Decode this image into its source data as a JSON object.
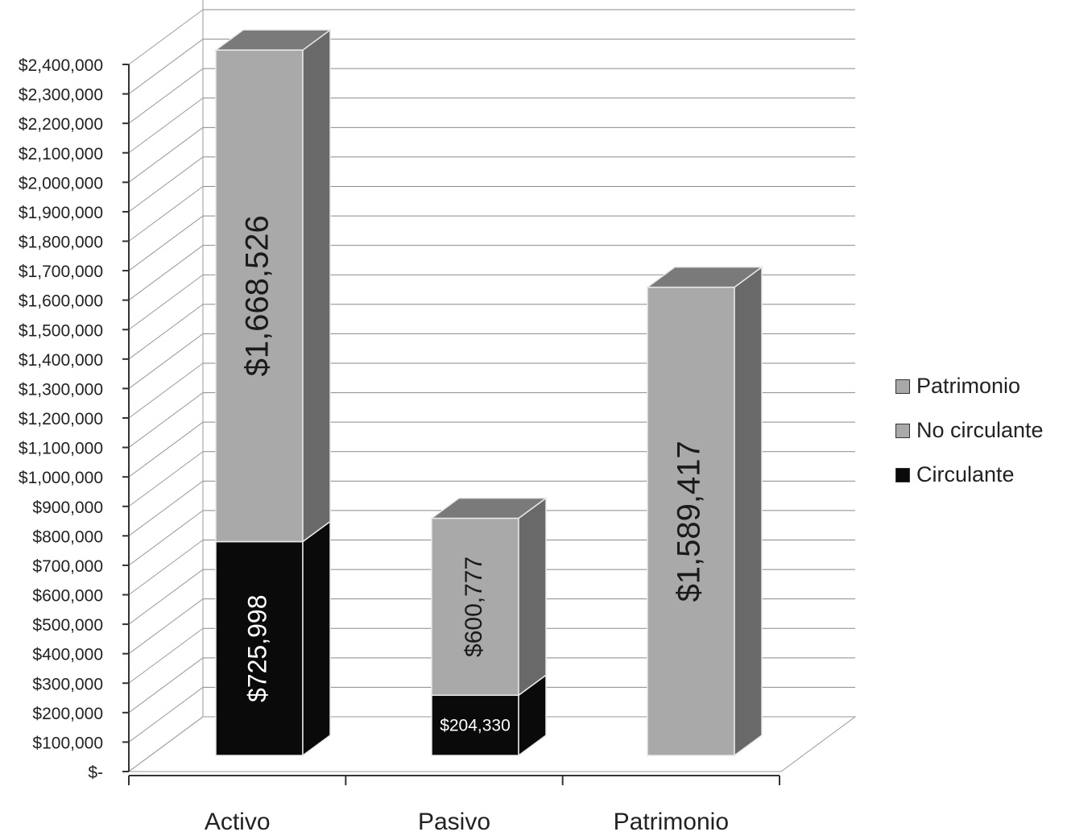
{
  "chart_data": {
    "type": "bar",
    "stacked": true,
    "three_d": true,
    "categories": [
      "Activo",
      "Pasivo",
      "Patrimonio"
    ],
    "series": [
      {
        "name": "Circulante",
        "color": "#0a0a0a",
        "values": [
          725998,
          204330,
          null
        ],
        "labels": [
          "$725,998",
          "$204,330",
          ""
        ]
      },
      {
        "name": "No circulante",
        "color": "#a9a9a9",
        "values": [
          1668526,
          600777,
          null
        ],
        "labels": [
          "$1,668,526",
          "$600,777",
          ""
        ]
      },
      {
        "name": "Patrimonio",
        "color": "#a9a9a9",
        "values": [
          null,
          null,
          1589417
        ],
        "labels": [
          "",
          "",
          "$1,589,417"
        ]
      }
    ],
    "ylim": [
      0,
      2400000
    ],
    "yticks": [
      0,
      100000,
      200000,
      300000,
      400000,
      500000,
      600000,
      700000,
      800000,
      900000,
      1000000,
      1100000,
      1200000,
      1300000,
      1400000,
      1500000,
      1600000,
      1700000,
      1800000,
      1900000,
      2000000,
      2100000,
      2200000,
      2300000,
      2400000
    ],
    "ytick_labels": [
      "$-",
      "$100,000",
      "$200,000",
      "$300,000",
      "$400,000",
      "$500,000",
      "$600,000",
      "$700,000",
      "$800,000",
      "$900,000",
      "$1,000,000",
      "$1,100,000",
      "$1,200,000",
      "$1,300,000",
      "$1,400,000",
      "$1,500,000",
      "$1,600,000",
      "$1,700,000",
      "$1,800,000",
      "$1,900,000",
      "$2,000,000",
      "$2,100,000",
      "$2,200,000",
      "$2,300,000",
      "$2,400,000"
    ],
    "grid": true,
    "legend_position": "right",
    "legend": [
      {
        "label": "Patrimonio",
        "color": "#a9a9a9"
      },
      {
        "label": "No circulante",
        "color": "#a9a9a9"
      },
      {
        "label": "Circulante",
        "color": "#0a0a0a"
      }
    ]
  }
}
